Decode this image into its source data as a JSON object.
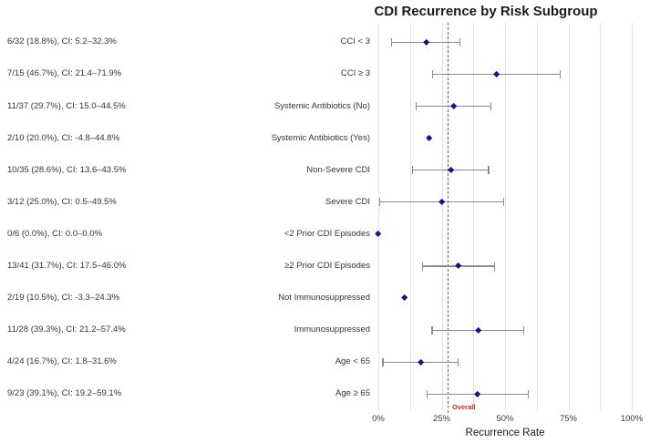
{
  "chart_data": {
    "type": "scatter",
    "subtype": "forest-plot",
    "title": "CDI Recurrence by Risk Subgroup",
    "xlabel": "Recurrence Rate",
    "xlim": [
      0,
      100
    ],
    "x_tick_labels": [
      "0%",
      "25%",
      "50%",
      "75%",
      "100%"
    ],
    "x_tick_values": [
      0,
      25,
      50,
      75,
      100
    ],
    "gridline_step_pct": 12.5,
    "grid_on": true,
    "overall_line": {
      "label": "Overall",
      "value_pct": 27.7,
      "style": "dashed",
      "line_color": "#c84a48",
      "label_color": "#cc2525"
    },
    "colors": {
      "marker": "#12128a",
      "ci_bar": "#8c8c8c",
      "gridline": "#e3e3e3",
      "text": "#343434"
    },
    "rows": [
      {
        "stat": "6/32 (18.8%), CI: 5.2–32.3%",
        "label": "CCI < 3",
        "value_pct": 18.8,
        "ci_low_pct": 5.2,
        "ci_high_pct": 32.3,
        "ci_drawn": true
      },
      {
        "stat": "7/15 (46.7%), CI: 21.4–71.9%",
        "label": "CCI ≥ 3",
        "value_pct": 46.7,
        "ci_low_pct": 21.4,
        "ci_high_pct": 71.9,
        "ci_drawn": true
      },
      {
        "stat": "11/37 (29.7%), CI: 15.0–44.5%",
        "label": "Systemic Antibiotics (No)",
        "value_pct": 29.7,
        "ci_low_pct": 15.0,
        "ci_high_pct": 44.5,
        "ci_drawn": true
      },
      {
        "stat": "2/10 (20.0%), CI: -4.8–44.8%",
        "label": "Systemic Antibiotics (Yes)",
        "value_pct": 20.0,
        "ci_low_pct": -4.8,
        "ci_high_pct": 44.8,
        "ci_drawn": false
      },
      {
        "stat": "10/35 (28.6%), CI: 13.6–43.5%",
        "label": "Non-Severe CDI",
        "value_pct": 28.6,
        "ci_low_pct": 13.6,
        "ci_high_pct": 43.5,
        "ci_drawn": true
      },
      {
        "stat": "3/12 (25.0%), CI: 0.5–49.5%",
        "label": "Severe CDI",
        "value_pct": 25.0,
        "ci_low_pct": 0.5,
        "ci_high_pct": 49.5,
        "ci_drawn": true
      },
      {
        "stat": "0/6 (0.0%), CI: 0.0–0.0%",
        "label": "<2 Prior CDI Episodes",
        "value_pct": 0.0,
        "ci_low_pct": 0.0,
        "ci_high_pct": 0.0,
        "ci_drawn": false
      },
      {
        "stat": "13/41 (31.7%), CI: 17.5–46.0%",
        "label": "≥2 Prior CDI Episodes",
        "value_pct": 31.7,
        "ci_low_pct": 17.5,
        "ci_high_pct": 46.0,
        "ci_drawn": true
      },
      {
        "stat": "2/19 (10.5%), CI: -3.3–24.3%",
        "label": "Not Immunosuppressed",
        "value_pct": 10.5,
        "ci_low_pct": -3.3,
        "ci_high_pct": 24.3,
        "ci_drawn": false
      },
      {
        "stat": "11/28 (39.3%), CI: 21.2–57.4%",
        "label": "Immunosuppressed",
        "value_pct": 39.3,
        "ci_low_pct": 21.2,
        "ci_high_pct": 57.4,
        "ci_drawn": true
      },
      {
        "stat": "4/24 (16.7%), CI: 1.8–31.6%",
        "label": "Age < 65",
        "value_pct": 16.7,
        "ci_low_pct": 1.8,
        "ci_high_pct": 31.6,
        "ci_drawn": true
      },
      {
        "stat": "9/23 (39.1%), CI: 19.2–59.1%",
        "label": "Age ≥ 65",
        "value_pct": 39.1,
        "ci_low_pct": 19.2,
        "ci_high_pct": 59.1,
        "ci_drawn": true
      }
    ]
  }
}
